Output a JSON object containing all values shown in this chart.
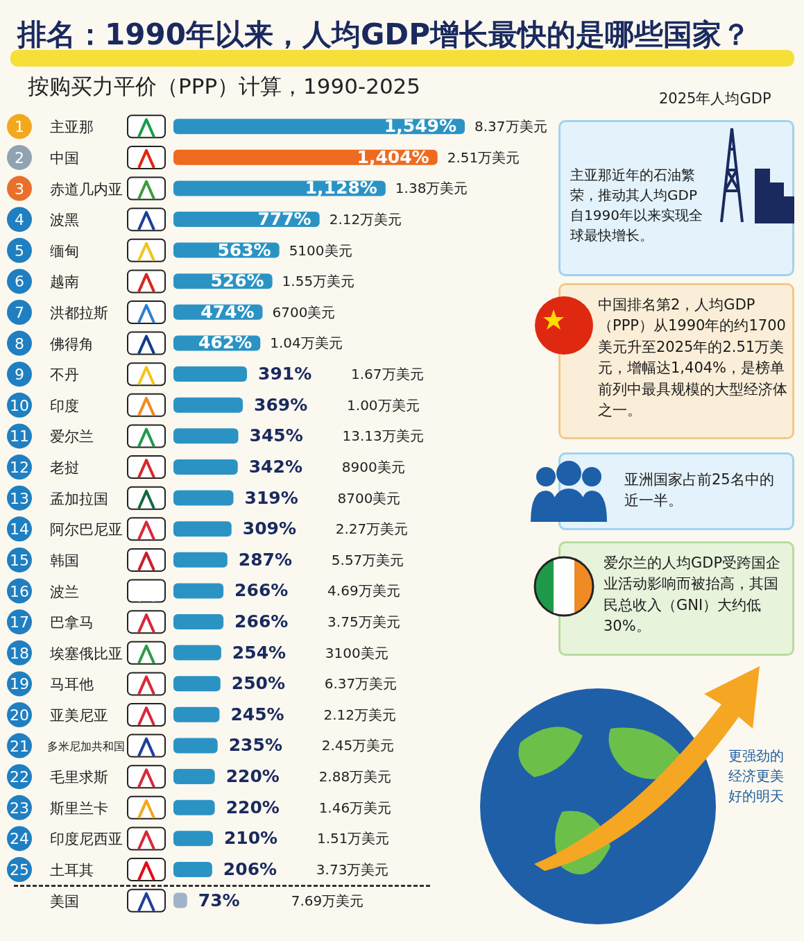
{
  "chart_data": {
    "type": "bar",
    "orientation": "horizontal",
    "title": "排名：1990年以来，人均GDP增长最快的是哪些国家？",
    "subtitle": "按购买力平价（PPP）计算，1990-2025",
    "categories": [
      "主亚那",
      "中国",
      "赤道几内亚",
      "波黑",
      "缅甸",
      "越南",
      "洪都拉斯",
      "佛得角",
      "不丹",
      "印度",
      "爱尔兰",
      "老挝",
      "孟加拉国",
      "阿尔巴尼亚",
      "韩国",
      "波兰",
      "巴拿马",
      "埃塞俄比亚",
      "马耳他",
      "亚美尼亚",
      "多米尼加共和国",
      "毛里求斯",
      "斯里兰卡",
      "印度尼西亚",
      "土耳其",
      "美国"
    ],
    "values": [
      1549,
      1404,
      1128,
      777,
      563,
      526,
      474,
      462,
      391,
      369,
      345,
      342,
      319,
      309,
      287,
      266,
      266,
      254,
      250,
      245,
      235,
      220,
      220,
      210,
      206,
      73
    ],
    "value_labels": [
      "1,549%",
      "1,404%",
      "1,128%",
      "777%",
      "563%",
      "526%",
      "474%",
      "462%",
      "391%",
      "369%",
      "345%",
      "342%",
      "319%",
      "309%",
      "287%",
      "266%",
      "266%",
      "254%",
      "250%",
      "245%",
      "235%",
      "220%",
      "220%",
      "210%",
      "206%",
      "73%"
    ],
    "colors": [
      "#2b93c4",
      "#ee6a1f",
      "#2b93c4",
      "#2b93c4",
      "#2b93c4",
      "#2b93c4",
      "#2b93c4",
      "#2b93c4",
      "#2b93c4",
      "#2b93c4",
      "#2b93c4",
      "#2b93c4",
      "#2b93c4",
      "#2b93c4",
      "#2b93c4",
      "#2b93c4",
      "#2b93c4",
      "#2b93c4",
      "#2b93c4",
      "#2b93c4",
      "#2b93c4",
      "#2b93c4",
      "#2b93c4",
      "#2b93c4",
      "#2b93c4",
      "#9fb4c8"
    ],
    "annotations": [
      "2025年人均GDP",
      "主亚那近年的石油繁荣，推动其人均GDP自1990年以来实现全球最快增长。",
      "中国排名第2，人均GDP（PPP）从1990年的约1700美元升至2025年的2.51万美元，增幅达1,404%，是榜单前列中最具规模的大型经济体之一。",
      "亚洲国家占前25名中的近一半。",
      "爱尔兰的人均GDP受跨国企业活动影响而被抬高，其国民总收入（GNI）大约低30%。",
      "更强劲的经济更美好的明天",
      "1",
      "2",
      "3",
      "4",
      "5",
      "6",
      "7",
      "8",
      "9",
      "10",
      "11",
      "12",
      "13",
      "14",
      "15",
      "16",
      "17",
      "18",
      "19",
      "20",
      "21",
      "22",
      "23",
      "24",
      "25",
      "8.37万美元",
      "2.51万美元",
      "1.38万美元",
      "2.12万美元",
      "5100美元",
      "1.55万美元",
      "6700美元",
      "1.04万美元",
      "1.67万美元",
      "1.00万美元",
      "13.13万美元",
      "8900美元",
      "8700美元",
      "2.27万美元",
      "5.57万美元",
      "4.69万美元",
      "3.75万美元",
      "3100美元",
      "6.37万美元",
      "2.12万美元",
      "2.45万美元",
      "2.88万美元",
      "1.46万美元",
      "1.51万美元",
      "3.73万美元",
      "7.69万美元"
    ]
  }
}
